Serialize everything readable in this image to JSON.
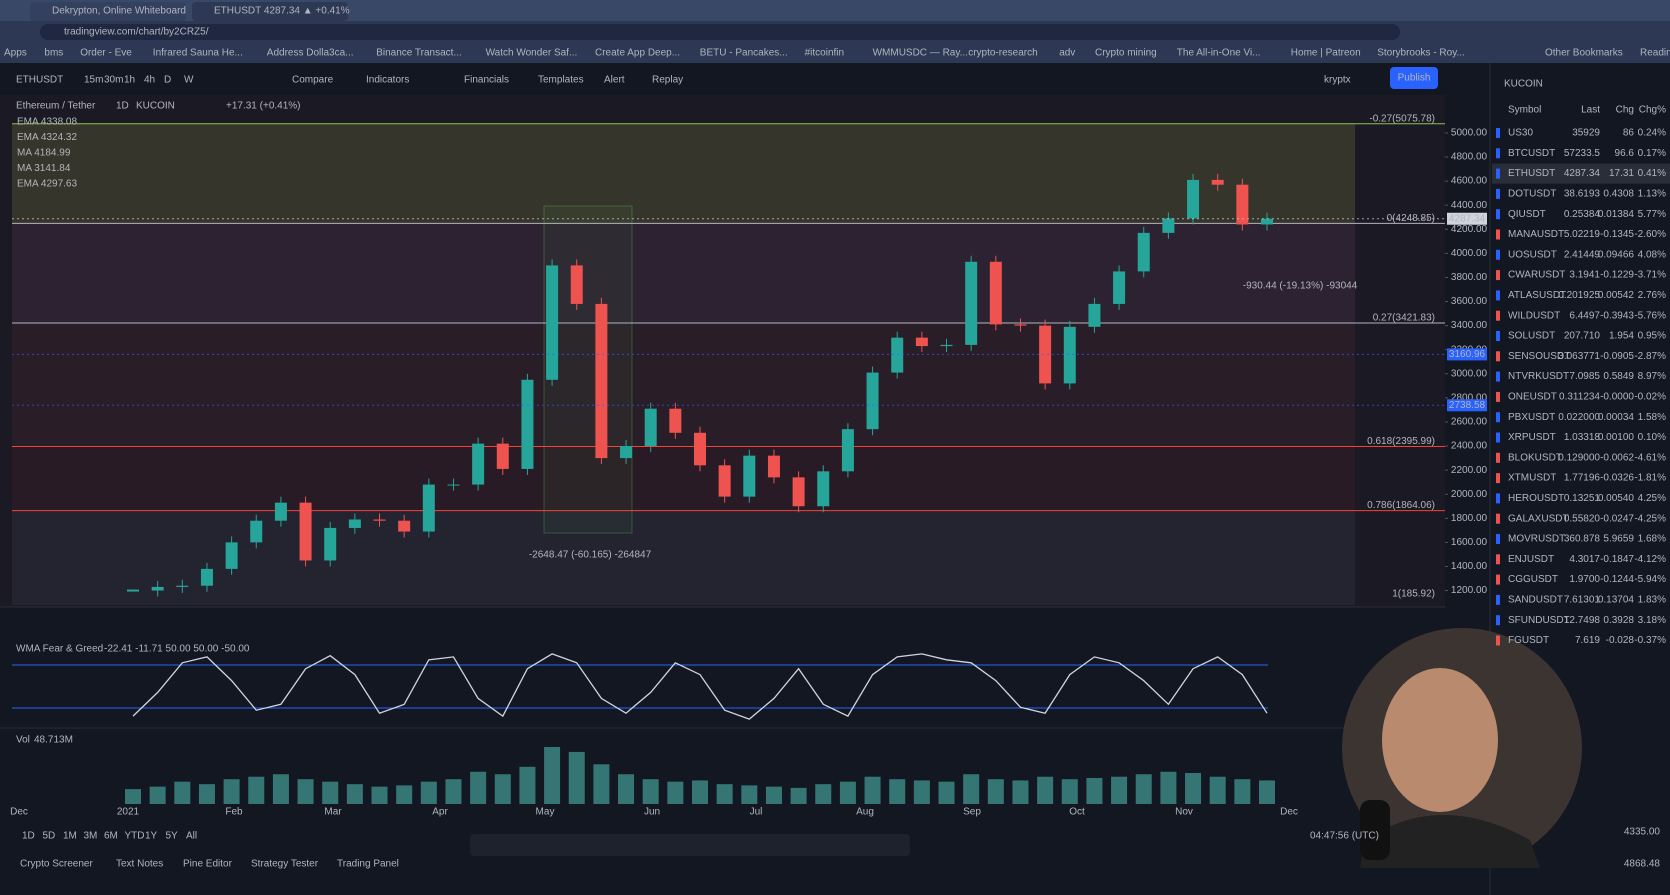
{
  "browser": {
    "tabs": [
      "Dekrypton, Online Whiteboard",
      "ETHUSDT 4287.34 ▲ +0.41%"
    ],
    "url": "tradingview.com/chart/by2CRZ5/",
    "bookmarks": [
      "Apps",
      "bms",
      "Order - Eve",
      "Infrared Sauna He...",
      "Address Dolla3ca...",
      "Binance Transact...",
      "Watch Wonder Saf...",
      "Create App Deep...",
      "BETU - Pancakes...",
      "#itcoinfin",
      "WMMUSDC — Ray...",
      "crypto-research",
      "adv",
      "Crypto mining",
      "The All-in-One Vi...",
      "Home | Patreon",
      "Storybrooks - Roy...",
      "Other Bookmarks",
      "Reading"
    ]
  },
  "toolbar": {
    "symbol": "ETHUSDT",
    "intervals": [
      "15m",
      "30m",
      "1h",
      "4h",
      "D",
      "W"
    ],
    "tools": [
      "Compare",
      "Indicators",
      "Financials",
      "Templates",
      "Alert",
      "Replay"
    ],
    "account": "kryptx",
    "publish": "Publish"
  },
  "chart_data": [
    {
      "type": "candle",
      "title": "Ethereum / Tether",
      "interval": "1D",
      "exchange": "KUCOIN",
      "change": "+17.31 (+0.41%)",
      "legend": [
        "EMA 4338.08",
        "EMA 4324.32",
        "MA 4184.99",
        "MA 3141.84",
        "EMA 4297.63"
      ],
      "values": [
        1200,
        1230,
        1240,
        1380,
        1600,
        1780,
        1930,
        1450,
        1720,
        1790,
        1780,
        1690,
        2080,
        2080,
        2420,
        2210,
        2950,
        3900,
        3580,
        2300,
        2400,
        2710,
        2510,
        2240,
        1980,
        2320,
        2140,
        1900,
        2190,
        2540,
        3010,
        3300,
        3230,
        3240,
        3930,
        3410,
        3400,
        2920,
        3390,
        3580,
        3850,
        4170,
        4290,
        4610,
        4570,
        4240,
        4287.34
      ],
      "up_color": "#26a69a",
      "down_color": "#ef5350",
      "ylim": [
        1080,
        5290
      ],
      "yticks": [
        {
          "value": 5000,
          "label": "5000.00"
        },
        {
          "value": 4800,
          "label": "4800.00"
        },
        {
          "value": 4600,
          "label": "4600.00"
        },
        {
          "value": 4400,
          "label": "4400.00"
        },
        {
          "value": 4200,
          "label": "4200.00"
        },
        {
          "value": 4000,
          "label": "4000.00"
        },
        {
          "value": 3800,
          "label": "3800.00"
        },
        {
          "value": 3600,
          "label": "3600.00"
        },
        {
          "value": 3400,
          "label": "3400.00"
        },
        {
          "value": 3200,
          "label": "3200.00"
        },
        {
          "value": 3000,
          "label": "3000.00"
        },
        {
          "value": 2800,
          "label": "2800.00"
        },
        {
          "value": 2600,
          "label": "2600.00"
        },
        {
          "value": 2400,
          "label": "2400.00"
        },
        {
          "value": 2200,
          "label": "2200.00"
        },
        {
          "value": 2000,
          "label": "2000.00"
        },
        {
          "value": 1800,
          "label": "1800.00"
        },
        {
          "value": 1600,
          "label": "1600.00"
        },
        {
          "value": 1400,
          "label": "1400.00"
        },
        {
          "value": 1200,
          "label": "1200.00"
        }
      ],
      "price_tags": [
        {
          "value": 4287.34,
          "label": "4287.34",
          "color": "#d1d4dc"
        },
        {
          "value": 3160.96,
          "label": "3160.96",
          "color": "#2962ff"
        },
        {
          "value": 2738.58,
          "label": "2738.58",
          "color": "#2962ff"
        }
      ],
      "fib_levels": [
        {
          "value": 5075.78,
          "label": "-0.27(5075.78)",
          "color": "#8bc34a"
        },
        {
          "value": 4248.85,
          "label": "0(4248.85)",
          "color": "#b2b5be"
        },
        {
          "value": 3421.83,
          "label": "0.27(3421.83)",
          "color": "#b2b5be"
        },
        {
          "value": 2395.99,
          "label": "0.618(2395.99)",
          "color": "#f44336"
        },
        {
          "value": 1864.06,
          "label": "0.786(1864.06)",
          "color": "#f44336"
        },
        {
          "value": 185.92,
          "label": "1(185.92)",
          "color": "#b2b5be"
        }
      ],
      "annotations": [
        "-2648.47 (-60.165) -264847",
        "-930.44 (-19.13%) -93044"
      ],
      "x_labels": [
        "Dec",
        "2021",
        "Feb",
        "Mar",
        "Apr",
        "May",
        "Jun",
        "Jul",
        "Aug",
        "Sep",
        "Oct",
        "Nov",
        "Dec"
      ]
    },
    {
      "type": "line",
      "title": "WMA Fear & Greed",
      "readout": "-22.41 -11.71 50.00 50.00 -50.00",
      "color": "#d1d4dc",
      "values": [
        -50,
        -10,
        40,
        50,
        10,
        -40,
        -30,
        30,
        52,
        20,
        -45,
        -30,
        45,
        50,
        -20,
        -50,
        30,
        55,
        40,
        -20,
        -45,
        -10,
        40,
        20,
        -40,
        -55,
        -20,
        30,
        -30,
        -50,
        20,
        50,
        55,
        45,
        40,
        10,
        -35,
        -45,
        20,
        50,
        40,
        10,
        -30,
        30,
        50,
        20,
        -45
      ],
      "ylim": [
        -70,
        70
      ]
    },
    {
      "type": "bar",
      "title": "Vol",
      "readout": "48.713M",
      "color": "#4db6ac",
      "values": [
        60,
        70,
        90,
        80,
        100,
        110,
        120,
        100,
        90,
        80,
        70,
        75,
        90,
        100,
        130,
        120,
        150,
        230,
        210,
        160,
        120,
        100,
        90,
        95,
        80,
        75,
        70,
        65,
        80,
        90,
        110,
        100,
        95,
        90,
        120,
        100,
        95,
        110,
        100,
        105,
        110,
        120,
        130,
        125,
        110,
        100,
        95
      ],
      "ylim": [
        0,
        250
      ]
    }
  ],
  "bottom": {
    "ranges": [
      "1D",
      "5D",
      "1M",
      "3M",
      "6M",
      "YTD",
      "1Y",
      "5Y",
      "All"
    ],
    "clock": "04:47:56 (UTC)",
    "tabs": [
      "Crypto Screener",
      "Text Notes",
      "Pine Editor",
      "Strategy Tester",
      "Trading Panel"
    ]
  },
  "watchlist": {
    "title": "KUCOIN",
    "columns": [
      "Symbol",
      "Last",
      "Chg",
      "Chg%"
    ],
    "rows": [
      [
        "US30",
        "35929",
        "86",
        "0.24%"
      ],
      [
        "BTCUSDT",
        "57233.5",
        "96.6",
        "0.17%"
      ],
      [
        "ETHUSDT",
        "4287.34",
        "17.31",
        "0.41%"
      ],
      [
        "DOTUSDT",
        "38.6193",
        "0.4308",
        "1.13%"
      ],
      [
        "QIUSDT",
        "0.25384",
        "0.01384",
        "5.77%"
      ],
      [
        "MANAUSDT",
        "5.02219",
        "-0.1345",
        "-2.60%"
      ],
      [
        "UOSUSDT",
        "2.41449",
        "0.09466",
        "4.08%"
      ],
      [
        "CWARUSDT",
        "3.1941",
        "-0.1229",
        "-3.71%"
      ],
      [
        "ATLASUSDT",
        "0.201925",
        "0.00542",
        "2.76%"
      ],
      [
        "WILDUSDT",
        "6.4497",
        "-0.3943",
        "-5.76%"
      ],
      [
        "SOLUSDT",
        "207.710",
        "1.954",
        "0.95%"
      ],
      [
        "SENSOUSDT",
        "3.063771",
        "-0.0905",
        "-2.87%"
      ],
      [
        "NTVRKUSDT",
        "7.0985",
        "0.5849",
        "8.97%"
      ],
      [
        "ONEUSDT",
        "0.311234",
        "-0.0000",
        "-0.02%"
      ],
      [
        "PBXUSDT",
        "0.022000",
        "0.00034",
        "1.58%"
      ],
      [
        "XRPUSDT",
        "1.03318",
        "0.00100",
        "0.10%"
      ],
      [
        "BLOKUSDT",
        "0.129000",
        "-0.0062",
        "-4.61%"
      ],
      [
        "XTMUSDT",
        "1.77196",
        "-0.0326",
        "-1.81%"
      ],
      [
        "HEROUSDT",
        "0.13251",
        "0.00540",
        "4.25%"
      ],
      [
        "GALAXUSDT",
        "0.55820",
        "-0.0247",
        "-4.25%"
      ],
      [
        "MOVRUSDT",
        "360.878",
        "5.9659",
        "1.68%"
      ],
      [
        "ENJUSDT",
        "4.3017",
        "-0.1847",
        "-4.12%"
      ],
      [
        "CGGUSDT",
        "1.9700",
        "-0.1244",
        "-5.94%"
      ],
      [
        "SANDUSDT",
        "7.61301",
        "0.13704",
        "1.83%"
      ],
      [
        "SFUNDUSDT",
        "12.7498",
        "0.3928",
        "3.18%"
      ],
      [
        "FGUSDT",
        "7.619",
        "-0.028",
        "-0.37%"
      ]
    ],
    "footer": [
      "4335.00",
      "4868.48"
    ]
  }
}
